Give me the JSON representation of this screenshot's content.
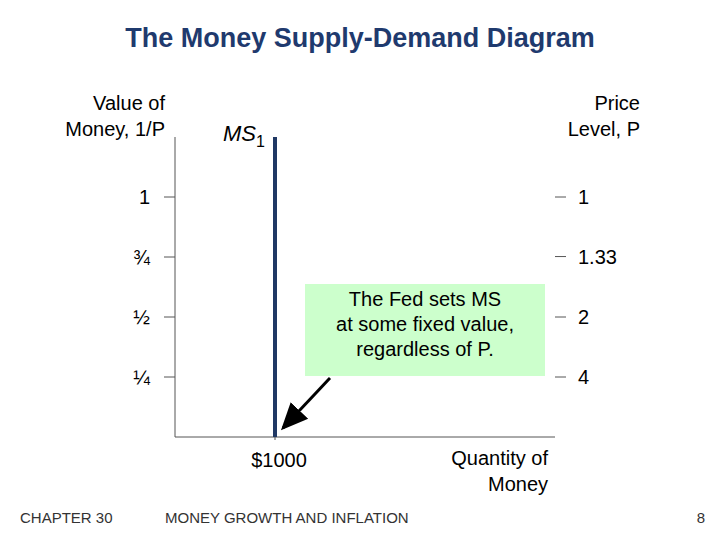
{
  "chart_data": {
    "type": "line",
    "title": "The Money Supply-Demand Diagram",
    "ylabel": [
      "Value of",
      "Money, 1/P"
    ],
    "y2label": [
      "Price",
      "Level, P"
    ],
    "xlabel": [
      "Quantity of",
      "Money"
    ],
    "xlim": [
      0,
      3800
    ],
    "xticks": [
      {
        "value": 1000,
        "label": "$1000"
      }
    ],
    "ylim": [
      0,
      1.25
    ],
    "yticks": [
      {
        "value": 0.25,
        "label": "¼"
      },
      {
        "value": 0.5,
        "label": "½"
      },
      {
        "value": 0.75,
        "label": "¾"
      },
      1
    ],
    "y2ticks": [
      4,
      2,
      1.33,
      1
    ],
    "grid": false,
    "series": [
      {
        "name": "MS1",
        "color": "#203864",
        "x": [
          1000,
          1000
        ],
        "values": [
          0,
          1.25
        ]
      }
    ],
    "annotation": [
      "The Fed sets MS",
      "at some fixed value,",
      "regardless of P."
    ],
    "footer": {
      "chapter": "CHAPTER 30",
      "title": "MONEY GROWTH AND INFLATION",
      "page": "8"
    }
  }
}
